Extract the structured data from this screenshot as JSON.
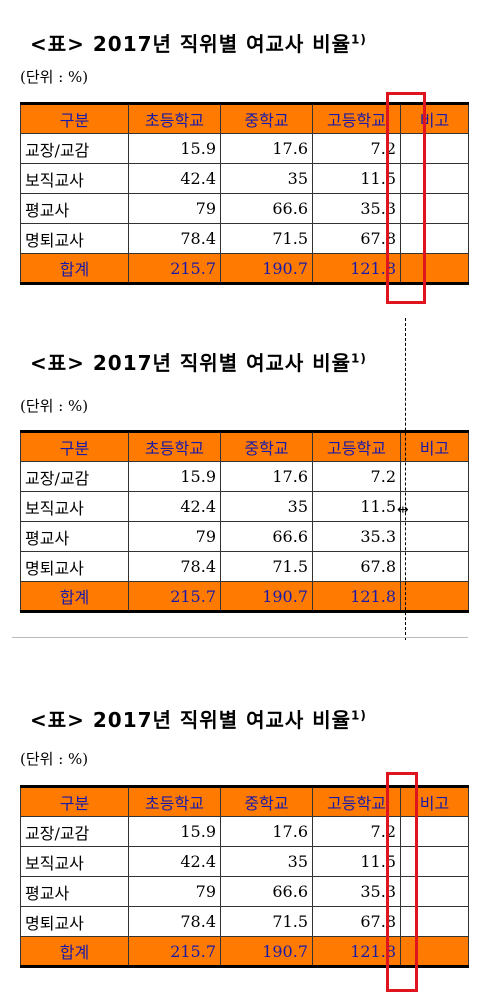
{
  "title": "<표> 2017년 직위별 여교사 비율",
  "footnote_marker": "1)",
  "unit": "(단위 : %)",
  "headers": [
    "구분",
    "초등학교",
    "중학교",
    "고등학교",
    "비고"
  ],
  "rows": [
    {
      "label": "교장/교감",
      "values": [
        "15.9",
        "17.6",
        "7.2"
      ]
    },
    {
      "label": "보직교사",
      "values": [
        "42.4",
        "35",
        "11.5"
      ]
    },
    {
      "label": "평교사",
      "values": [
        "79",
        "66.6",
        "35.3"
      ]
    },
    {
      "label": "명퇴교사",
      "values": [
        "78.4",
        "71.5",
        "67.8"
      ]
    }
  ],
  "total": {
    "label": "합계",
    "values": [
      "215.7",
      "190.7",
      "121.8"
    ]
  },
  "colors": {
    "header_bg": "#ff7a00",
    "header_text": "#1a1aa8",
    "highlight_box": "#e0141e"
  },
  "cursor_icon": "column-resize-cursor-icon"
}
